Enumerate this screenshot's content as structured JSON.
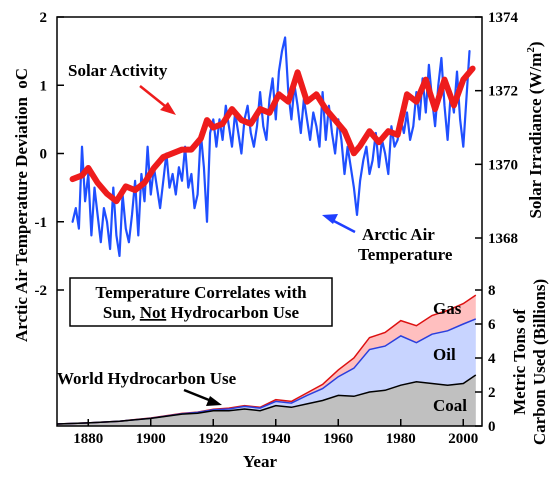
{
  "chart_data": {
    "type": "line",
    "x_range": [
      1870,
      2006
    ],
    "xticks": [
      "1880",
      "1900",
      "1920",
      "1940",
      "1960",
      "1980",
      "2000"
    ],
    "xlabel": "Year",
    "left_axis": {
      "label": "Arctic Air Temperature Deviation",
      "unit": "oC",
      "range": [
        -2,
        2
      ],
      "ticks": [
        "2",
        "1",
        "0",
        "-1",
        "-2"
      ]
    },
    "right_axis_top": {
      "label": "Solar Irradiance (W/m",
      "unit_sup": "2",
      "label_end": ")",
      "range": [
        1367,
        1374
      ],
      "ticks": [
        "1374",
        "1372",
        "1370",
        "1368"
      ]
    },
    "right_axis_bottom": {
      "label_line1": "Metric Tons of",
      "label_line2": "Carbon Used (Billions)",
      "range": [
        0,
        8
      ],
      "ticks": [
        "8",
        "6",
        "4",
        "2",
        "0"
      ]
    },
    "series": [
      {
        "name": "Arctic Air Temperature",
        "axis": "left",
        "color": "#1f4fff",
        "x": [
          1875,
          1876,
          1877,
          1878,
          1879,
          1880,
          1881,
          1882,
          1883,
          1884,
          1885,
          1886,
          1887,
          1888,
          1889,
          1890,
          1891,
          1892,
          1893,
          1894,
          1895,
          1896,
          1897,
          1898,
          1899,
          1900,
          1901,
          1902,
          1903,
          1904,
          1905,
          1906,
          1907,
          1908,
          1909,
          1910,
          1911,
          1912,
          1913,
          1914,
          1915,
          1916,
          1917,
          1918,
          1919,
          1920,
          1921,
          1922,
          1923,
          1924,
          1925,
          1926,
          1927,
          1928,
          1929,
          1930,
          1931,
          1932,
          1933,
          1934,
          1935,
          1936,
          1937,
          1938,
          1939,
          1940,
          1941,
          1942,
          1943,
          1944,
          1945,
          1946,
          1947,
          1948,
          1949,
          1950,
          1951,
          1952,
          1953,
          1954,
          1955,
          1956,
          1957,
          1958,
          1959,
          1960,
          1961,
          1962,
          1963,
          1964,
          1965,
          1966,
          1967,
          1968,
          1969,
          1970,
          1971,
          1972,
          1973,
          1974,
          1975,
          1976,
          1977,
          1978,
          1979,
          1980,
          1981,
          1982,
          1983,
          1984,
          1985,
          1986,
          1987,
          1988,
          1989,
          1990,
          1991,
          1992,
          1993,
          1994,
          1995,
          1996,
          1997,
          1998,
          1999,
          2000,
          2001,
          2002
        ],
        "y": [
          -1.0,
          -0.8,
          -1.1,
          0.1,
          -0.7,
          -0.3,
          -1.2,
          -0.5,
          -0.9,
          -1.3,
          -0.8,
          -1.0,
          -1.4,
          -0.5,
          -1.2,
          -1.5,
          -0.6,
          -1.1,
          -1.3,
          -0.9,
          -0.4,
          -1.2,
          -0.3,
          -0.7,
          0.1,
          -0.6,
          -0.2,
          -0.5,
          -0.8,
          -0.4,
          0.0,
          -0.5,
          -0.3,
          -0.6,
          -0.2,
          -0.4,
          0.1,
          -0.5,
          -0.3,
          -0.8,
          -0.6,
          0.3,
          -0.2,
          -1.0,
          0.3,
          0.5,
          0.1,
          0.5,
          0.2,
          0.7,
          0.4,
          0.1,
          0.6,
          0.3,
          0.0,
          0.5,
          0.7,
          0.3,
          0.1,
          0.4,
          0.9,
          0.4,
          0.2,
          0.8,
          1.1,
          0.5,
          1.2,
          1.5,
          1.7,
          0.9,
          0.5,
          1.0,
          0.7,
          0.3,
          0.8,
          0.5,
          0.2,
          0.6,
          0.4,
          0.1,
          0.9,
          0.2,
          0.7,
          0.3,
          0.0,
          0.5,
          0.2,
          -0.3,
          0.1,
          -0.2,
          -0.5,
          -0.9,
          -0.4,
          -0.1,
          0.1,
          -0.3,
          -0.1,
          0.3,
          -0.2,
          0.2,
          0.0,
          -0.3,
          0.4,
          0.1,
          0.2,
          0.5,
          0.3,
          0.6,
          0.2,
          0.4,
          0.9,
          0.5,
          1.1,
          0.6,
          1.3,
          0.8,
          0.4,
          1.0,
          1.4,
          0.7,
          0.2,
          0.9,
          0.6,
          1.2,
          0.5,
          0.1,
          0.8,
          1.5
        ]
      },
      {
        "name": "Solar Activity",
        "axis": "right_top",
        "color": "#ee1c1c",
        "x": [
          1875,
          1878,
          1880,
          1883,
          1886,
          1889,
          1892,
          1895,
          1898,
          1901,
          1904,
          1907,
          1910,
          1913,
          1916,
          1918,
          1920,
          1923,
          1926,
          1929,
          1932,
          1935,
          1938,
          1941,
          1944,
          1947,
          1950,
          1953,
          1956,
          1959,
          1962,
          1965,
          1967,
          1970,
          1973,
          1976,
          1979,
          1982,
          1985,
          1988,
          1991,
          1994,
          1997,
          2000,
          2003
        ],
        "y": [
          1369.6,
          1369.7,
          1369.9,
          1369.5,
          1369.2,
          1369.0,
          1369.4,
          1369.3,
          1369.5,
          1369.9,
          1370.2,
          1370.3,
          1370.4,
          1370.4,
          1370.7,
          1371.2,
          1371.0,
          1371.1,
          1371.5,
          1371.2,
          1371.1,
          1371.5,
          1371.4,
          1371.9,
          1371.7,
          1372.5,
          1371.7,
          1371.9,
          1371.5,
          1371.2,
          1370.9,
          1370.3,
          1370.5,
          1370.9,
          1370.6,
          1370.9,
          1370.8,
          1371.9,
          1371.7,
          1372.3,
          1371.5,
          1372.3,
          1371.6,
          1372.3,
          1372.6
        ]
      }
    ],
    "hydrocarbon": {
      "axis": "right_bottom",
      "years": [
        1870,
        1880,
        1890,
        1900,
        1910,
        1915,
        1920,
        1925,
        1930,
        1935,
        1940,
        1945,
        1950,
        1955,
        1960,
        1965,
        1970,
        1975,
        1980,
        1985,
        1990,
        1995,
        2000,
        2004
      ],
      "coal": [
        0.12,
        0.18,
        0.28,
        0.45,
        0.7,
        0.75,
        0.9,
        0.9,
        1.0,
        0.9,
        1.2,
        1.1,
        1.3,
        1.5,
        1.8,
        1.75,
        2.0,
        2.1,
        2.4,
        2.6,
        2.5,
        2.4,
        2.5,
        3.0
      ],
      "oil": [
        0.12,
        0.18,
        0.28,
        0.46,
        0.72,
        0.8,
        0.96,
        1.0,
        1.15,
        1.05,
        1.45,
        1.35,
        1.8,
        2.2,
        2.9,
        3.4,
        4.5,
        4.7,
        5.3,
        4.9,
        5.4,
        5.6,
        6.0,
        6.3
      ],
      "gas": [
        0.12,
        0.18,
        0.28,
        0.47,
        0.74,
        0.82,
        0.99,
        1.05,
        1.2,
        1.1,
        1.55,
        1.45,
        1.95,
        2.45,
        3.3,
        4.0,
        5.2,
        5.5,
        6.2,
        5.9,
        6.5,
        6.8,
        7.2,
        7.7
      ],
      "fill_coal": "#c0c0c0",
      "fill_oil": "#c8d4ff",
      "fill_gas": "#ffbfbf",
      "line_coal": "#000000",
      "line_oil": "#2b3fdd",
      "line_gas": "#dd1111"
    },
    "annotations": {
      "solar_activity": "Solar Activity",
      "arctic_line1": "Arctic Air",
      "arctic_line2": "Temperature",
      "world_hydrocarbon": "World Hydrocarbon Use",
      "gas": "Gas",
      "oil": "Oil",
      "coal": "Coal",
      "box_line1": "Temperature Correlates with",
      "box_sun": "Sun, ",
      "box_not": "Not",
      "box_rest": " Hydrocarbon Use"
    }
  }
}
